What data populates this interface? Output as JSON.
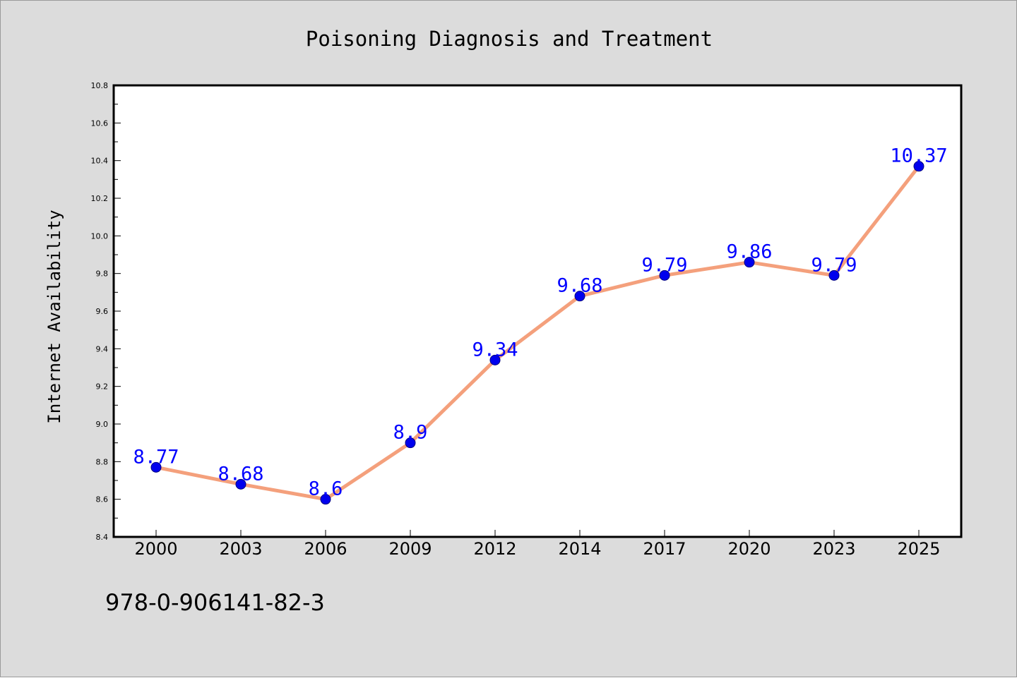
{
  "chart_data": {
    "type": "line",
    "title": "Poisoning Diagnosis and Treatment",
    "xlabel": "",
    "ylabel": "Internet Availability",
    "categories": [
      "2000",
      "2003",
      "2006",
      "2009",
      "2012",
      "2014",
      "2017",
      "2020",
      "2023",
      "2025"
    ],
    "series": [
      {
        "values": [
          8.77,
          8.68,
          8.6,
          8.9,
          9.34,
          9.68,
          9.79,
          9.86,
          9.79,
          10.37
        ],
        "data_labels": [
          "8.77",
          "8.68",
          "8.6",
          "8.9",
          "9.34",
          "9.68",
          "9.79",
          "9.86",
          "9.79",
          "10.37"
        ]
      }
    ],
    "ylim": [
      8.4,
      10.8
    ],
    "yticks": [
      "8.4",
      "8.6",
      "8.8",
      "9.0",
      "9.2",
      "9.4",
      "9.6",
      "9.8",
      "10.0",
      "10.2",
      "10.4",
      "10.6",
      "10.8"
    ],
    "grid": false,
    "legend": "none",
    "line_color": "#f4a07c",
    "marker_color": "#0000ee",
    "label_color": "#0000ff"
  },
  "footer_text": "978-0-906141-82-3"
}
